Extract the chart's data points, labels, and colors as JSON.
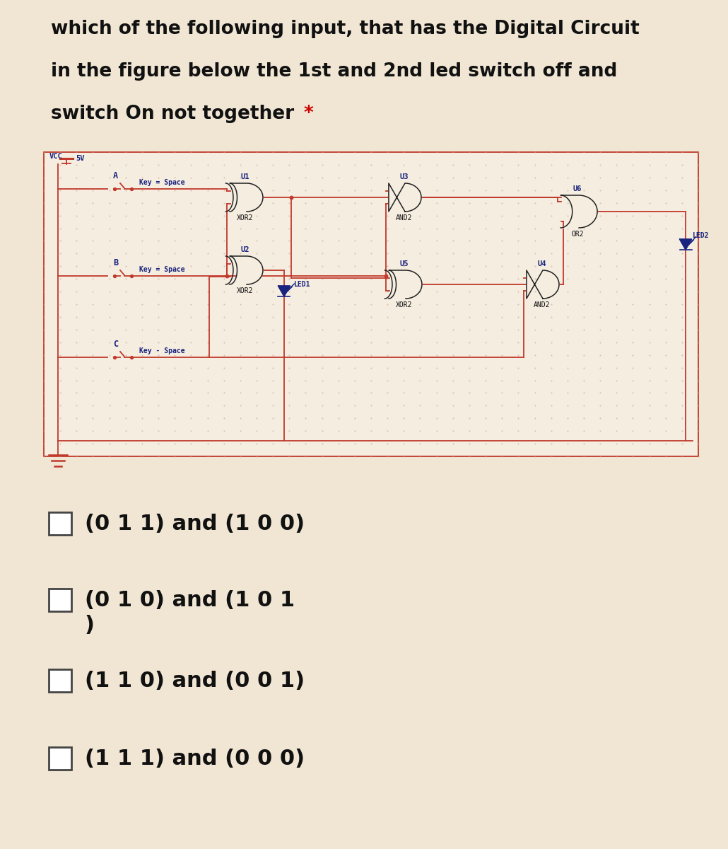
{
  "title_line1": "which of the following input, that has the Digital Circuit",
  "title_line2": "in the figure below the 1st and 2nd led switch off and",
  "title_line3": "switch On not together ",
  "title_asterisk": "*",
  "bg_color": "#f0e6d3",
  "circuit_bg": "#f5ede0",
  "grid_dot_color": "#c8a090",
  "wire_color": "#c0392b",
  "label_color": "#1a237e",
  "options": [
    "(0 1 1) and (1 0 0)",
    "(0 1 0) and (1 0 1\n)",
    "(1 1 0) and (0 0 1)",
    "(1 1 1) and (0 0 0)"
  ],
  "font_size_title": 19,
  "font_size_options": 22,
  "font_size_circuit": 7.5
}
